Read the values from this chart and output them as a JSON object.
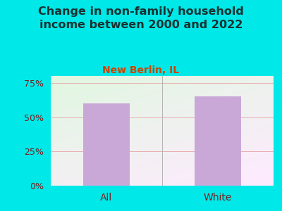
{
  "categories": [
    "All",
    "White"
  ],
  "values": [
    60,
    65
  ],
  "bar_color": "#c9a8d8",
  "title": "Change in non-family household\nincome between 2000 and 2022",
  "subtitle": "New Berlin, IL",
  "title_color": "#1a3030",
  "subtitle_color": "#cc4400",
  "tick_label_color": "#7a1a1a",
  "background_outer": "#00e8e8",
  "background_inner_top": "#f0f5e8",
  "background_inner_bottom": "#d8f0d0",
  "ylim": [
    0,
    80
  ],
  "yticks": [
    0,
    25,
    50,
    75
  ],
  "ytick_labels": [
    "0%",
    "25%",
    "50%",
    "75%"
  ],
  "grid_color": "#e8b0b0",
  "title_fontsize": 11.5,
  "subtitle_fontsize": 10,
  "tick_fontsize": 9,
  "cat_fontsize": 10
}
